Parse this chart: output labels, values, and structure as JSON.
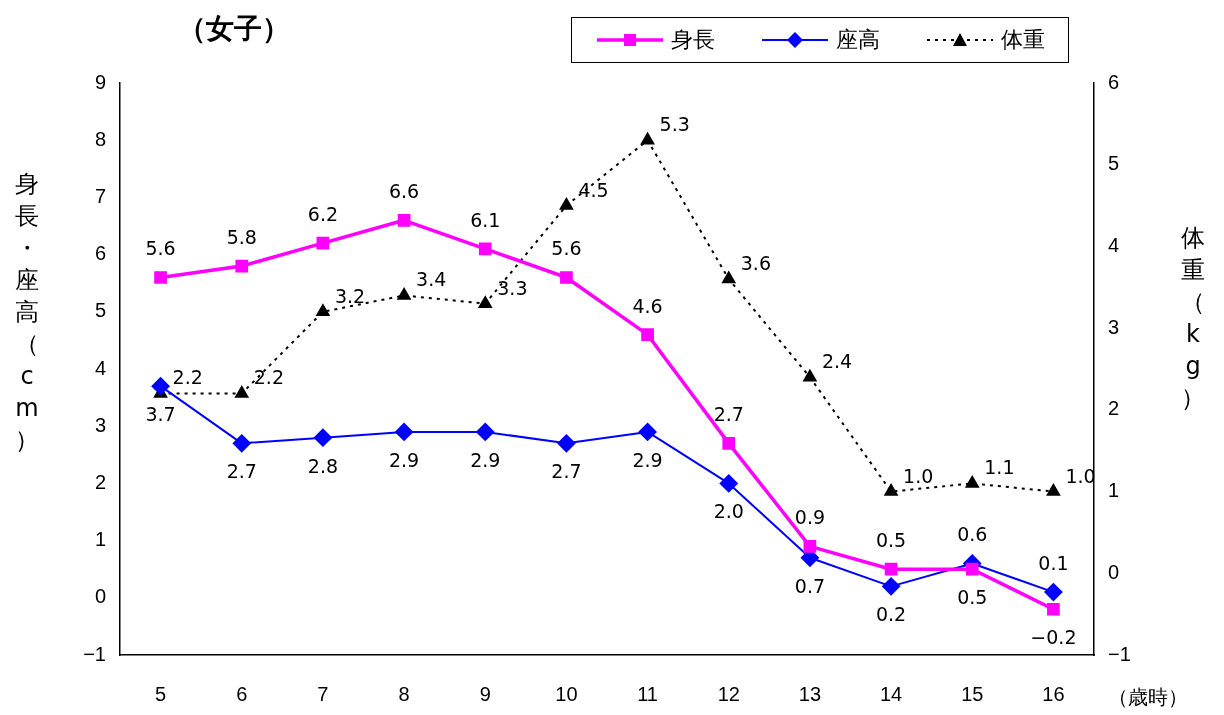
{
  "chart_data": {
    "type": "line",
    "title": "（女子）",
    "xlabel": "（歳時）",
    "ylabel": "身長・座高（cm）",
    "y2label": "体重（kg）",
    "categories": [
      "5",
      "6",
      "7",
      "8",
      "9",
      "10",
      "11",
      "12",
      "13",
      "14",
      "15",
      "16"
    ],
    "series": [
      {
        "name": "身長",
        "color": "#ff00ff",
        "marker": "square",
        "line_style": "solid",
        "values": [
          5.6,
          5.8,
          6.2,
          6.6,
          6.1,
          5.6,
          4.6,
          2.7,
          0.9,
          0.5,
          0.5,
          -0.2
        ],
        "value_labels": [
          "5.6",
          "5.8",
          "6.2",
          "6.6",
          "6.1",
          "5.6",
          "4.6",
          "2.7",
          "0.9",
          "0.5",
          "0.5",
          "−0.2"
        ]
      },
      {
        "name": "座高",
        "color": "#0000ff",
        "marker": "diamond",
        "line_style": "solid",
        "values": [
          3.7,
          2.7,
          2.8,
          2.9,
          2.9,
          2.7,
          2.9,
          2.0,
          0.7,
          0.2,
          0.6,
          0.1
        ],
        "value_labels": [
          "3.7",
          "2.7",
          "2.8",
          "2.9",
          "2.9",
          "2.7",
          "2.9",
          "2.0",
          "0.7",
          "0.2",
          "0.6",
          "0.1"
        ]
      },
      {
        "name": "体重",
        "color": "#000000",
        "marker": "triangle",
        "line_style": "dotted",
        "axis": "y2",
        "values": [
          2.2,
          2.2,
          3.2,
          3.4,
          3.3,
          4.5,
          5.3,
          3.6,
          2.4,
          1.0,
          1.1,
          1.0
        ],
        "value_labels": [
          "2.2",
          "2.2",
          "3.2",
          "3.4",
          "3.3",
          "4.5",
          "5.3",
          "3.6",
          "2.4",
          "1.0",
          "1.1",
          "1.0"
        ]
      }
    ],
    "ylim": [
      -1,
      9
    ],
    "yticks": [
      {
        "value": -1,
        "label": "−1"
      },
      0,
      1,
      2,
      3,
      4,
      5,
      6,
      7,
      8,
      9
    ],
    "y2lim": [
      -1,
      6
    ],
    "y2ticks": [
      {
        "value": -1,
        "label": "−1"
      },
      0,
      1,
      2,
      3,
      4,
      5,
      6
    ],
    "grid": false,
    "legend": "top right"
  }
}
